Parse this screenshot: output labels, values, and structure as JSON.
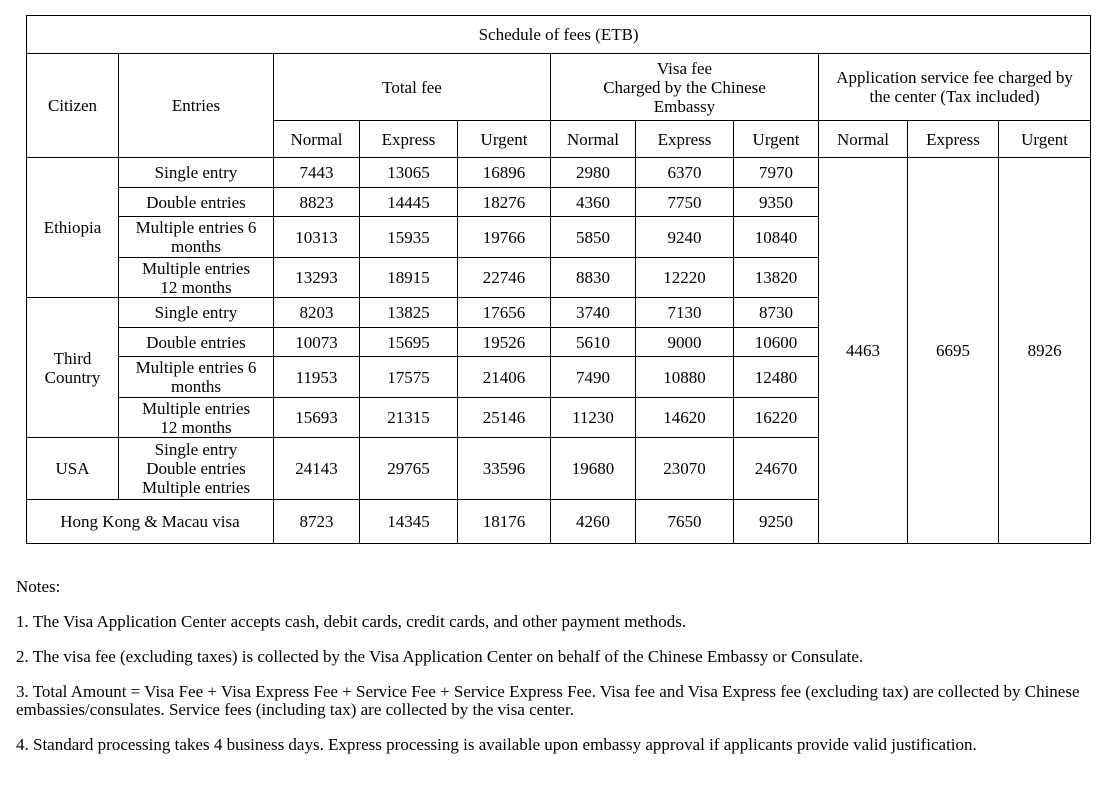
{
  "table": {
    "title": "Schedule of fees (ETB)",
    "headers": {
      "citizen": "Citizen",
      "entries": "Entries",
      "total_fee": "Total fee",
      "visa_fee_line1": "Visa fee",
      "visa_fee_line2": "Charged by the Chinese Embassy",
      "service_fee": "Application service fee charged by the center (Tax included)",
      "sub": [
        "Normal",
        "Express",
        "Urgent",
        "Normal",
        "Express",
        "Urgent",
        "Normal",
        "Express",
        "Urgent"
      ]
    },
    "groups": [
      {
        "citizen": "Ethiopia",
        "rows": [
          {
            "entries": "Single entry",
            "values": [
              "7443",
              "13065",
              "16896",
              "2980",
              "6370",
              "7970"
            ]
          },
          {
            "entries": "Double entries",
            "values": [
              "8823",
              "14445",
              "18276",
              "4360",
              "7750",
              "9350"
            ]
          },
          {
            "entries": "Multiple entries 6 months",
            "values": [
              "10313",
              "15935",
              "19766",
              "5850",
              "9240",
              "10840"
            ]
          },
          {
            "entries": "Multiple entries 12 months",
            "values": [
              "13293",
              "18915",
              "22746",
              "8830",
              "12220",
              "13820"
            ]
          }
        ]
      },
      {
        "citizen": "Third Country",
        "rows": [
          {
            "entries": "Single entry",
            "values": [
              "8203",
              "13825",
              "17656",
              "3740",
              "7130",
              "8730"
            ]
          },
          {
            "entries": "Double entries",
            "values": [
              "10073",
              "15695",
              "19526",
              "5610",
              "9000",
              "10600"
            ]
          },
          {
            "entries": "Multiple entries 6 months",
            "values": [
              "11953",
              "17575",
              "21406",
              "7490",
              "10880",
              "12480"
            ]
          },
          {
            "entries": "Multiple entries 12 months",
            "values": [
              "15693",
              "21315",
              "25146",
              "11230",
              "14620",
              "16220"
            ]
          }
        ]
      },
      {
        "citizen": "USA",
        "rows": [
          {
            "entries_lines": [
              "Single entry",
              "Double entries",
              "Multiple entries"
            ],
            "values": [
              "24143",
              "29765",
              "33596",
              "19680",
              "23070",
              "24670"
            ]
          }
        ]
      }
    ],
    "hk_macau": {
      "label": "Hong Kong & Macau visa",
      "values": [
        "8723",
        "14345",
        "18176",
        "4260",
        "7650",
        "9250"
      ]
    },
    "service_fees": [
      "4463",
      "6695",
      "8926"
    ]
  },
  "notes": {
    "heading": "Notes:",
    "items": [
      "1. The Visa Application Center accepts cash, debit cards, credit cards, and other payment methods.",
      "2. The visa fee (excluding taxes) is collected by the Visa Application Center on behalf of the Chinese Embassy or Consulate.",
      "3. Total Amount = Visa Fee + Visa Express Fee + Service Fee + Service Express Fee. Visa fee and Visa Express fee (excluding tax) are collected by Chinese embassies/consulates. Service fees (including tax) are collected by the visa center.",
      "4. Standard processing takes 4 business days. Express processing is available upon embassy approval if applicants provide valid justification."
    ]
  }
}
